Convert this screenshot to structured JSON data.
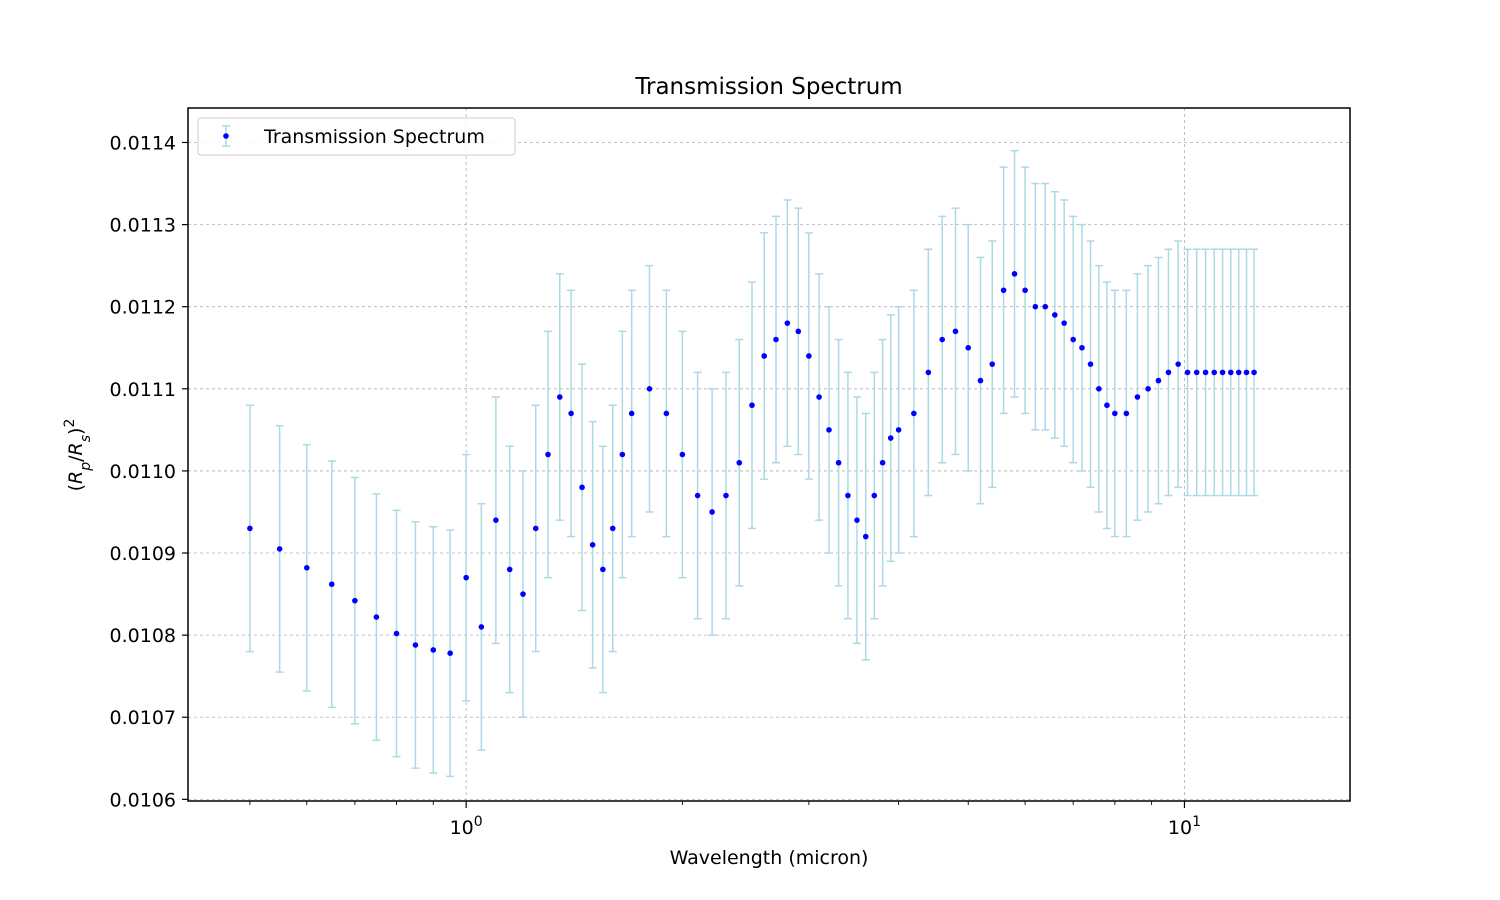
{
  "chart_data": {
    "type": "scatter",
    "title": "Transmission Spectrum",
    "xlabel": "Wavelength (micron)",
    "ylabel": "(R_p/R_s)^2",
    "xscale": "log",
    "xlim": [
      0.41,
      17.0
    ],
    "ylim": [
      0.010598,
      0.011442
    ],
    "x_ticks": [
      {
        "value": 1,
        "base": "10",
        "exp": "0"
      },
      {
        "value": 10,
        "base": "10",
        "exp": "1"
      }
    ],
    "y_ticks": [
      "0.0106",
      "0.0107",
      "0.0108",
      "0.0109",
      "0.0110",
      "0.0111",
      "0.0112",
      "0.0113",
      "0.0114"
    ],
    "grid": true,
    "legend": {
      "position": "top-left",
      "entries": [
        "Transmission Spectrum"
      ]
    },
    "colors": {
      "points": "#0000ff",
      "errorbars": "#add8e6",
      "grid": "#b0b0b0"
    },
    "series": [
      {
        "name": "Transmission Spectrum",
        "error": 0.00015,
        "x": [
          0.5,
          0.55,
          0.6,
          0.65,
          0.7,
          0.75,
          0.8,
          0.85,
          0.9,
          0.95,
          1.0,
          1.05,
          1.1,
          1.15,
          1.2,
          1.25,
          1.3,
          1.35,
          1.4,
          1.45,
          1.5,
          1.55,
          1.6,
          1.65,
          1.7,
          1.8,
          1.9,
          2.0,
          2.1,
          2.2,
          2.3,
          2.4,
          2.5,
          2.6,
          2.7,
          2.8,
          2.9,
          3.0,
          3.1,
          3.2,
          3.3,
          3.4,
          3.5,
          3.6,
          3.7,
          3.8,
          3.9,
          4.0,
          4.2,
          4.4,
          4.6,
          4.8,
          5.0,
          5.2,
          5.4,
          5.6,
          5.8,
          6.0,
          6.2,
          6.4,
          6.6,
          6.8,
          7.0,
          7.2,
          7.4,
          7.6,
          7.8,
          8.0,
          8.3,
          8.6,
          8.9,
          9.2,
          9.5,
          9.8,
          10.1,
          10.4,
          10.7,
          11.0,
          11.3,
          11.6,
          11.9,
          12.2,
          12.5
        ],
        "y": [
          0.01093,
          0.010905,
          0.010882,
          0.010862,
          0.010842,
          0.010822,
          0.010802,
          0.010788,
          0.010782,
          0.010778,
          0.01087,
          0.01081,
          0.01094,
          0.01088,
          0.01085,
          0.01093,
          0.01102,
          0.01109,
          0.01107,
          0.01098,
          0.01091,
          0.01088,
          0.01093,
          0.01102,
          0.01107,
          0.0111,
          0.01107,
          0.01102,
          0.01097,
          0.01095,
          0.01097,
          0.01101,
          0.01108,
          0.01114,
          0.01116,
          0.01118,
          0.01117,
          0.01114,
          0.01109,
          0.01105,
          0.01101,
          0.01097,
          0.01094,
          0.01092,
          0.01097,
          0.01101,
          0.01104,
          0.01105,
          0.01107,
          0.01112,
          0.01116,
          0.01117,
          0.01115,
          0.01111,
          0.01113,
          0.01122,
          0.01124,
          0.01122,
          0.0112,
          0.0112,
          0.01119,
          0.01118,
          0.01116,
          0.01115,
          0.01113,
          0.0111,
          0.01108,
          0.01107,
          0.01107,
          0.01109,
          0.0111,
          0.01111,
          0.01112,
          0.01113,
          0.01112,
          0.01112,
          0.01112,
          0.01112,
          0.01112,
          0.01112,
          0.01112,
          0.01112,
          0.01112
        ]
      }
    ]
  }
}
